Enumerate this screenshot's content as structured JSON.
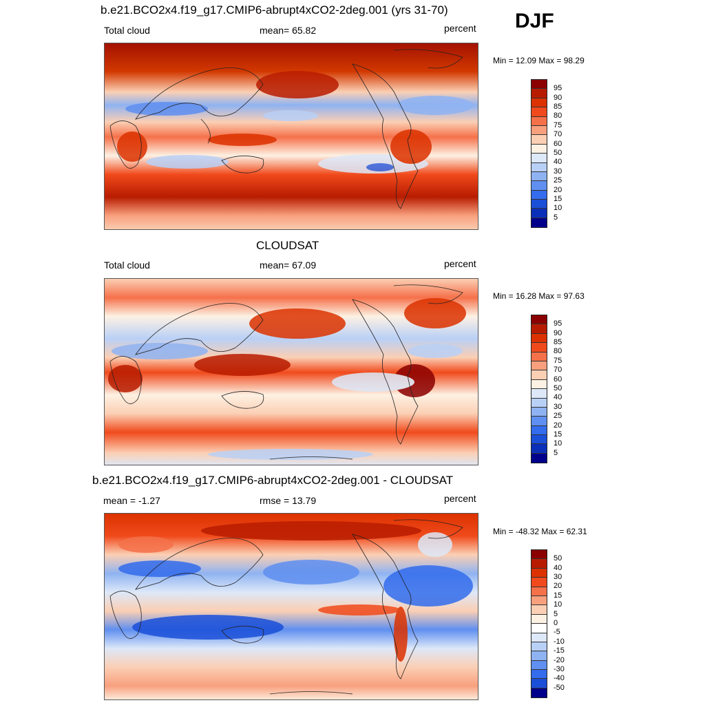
{
  "season": "DJF",
  "panels": [
    {
      "title": "b.e21.BCO2x4.f19_g17.CMIP6-abrupt4xCO2-2deg.001 (yrs 31-70)",
      "left_label": "Total cloud",
      "center_label": "mean=  65.82",
      "right_label": "percent",
      "minmax": "Min =  12.09 Max =  98.29",
      "colorbar": {
        "labels": [
          "95",
          "90",
          "85",
          "80",
          "75",
          "70",
          "60",
          "50",
          "40",
          "30",
          "25",
          "20",
          "15",
          "10",
          "5"
        ],
        "colors": [
          "#8b0000",
          "#b81c00",
          "#dc3200",
          "#f04a1c",
          "#f5714a",
          "#f8a07e",
          "#fbcfb4",
          "#fdf1e3",
          "#dde8f8",
          "#b9d0f6",
          "#8fb3f2",
          "#5f8ff0",
          "#336cec",
          "#1a4fd8",
          "#0a2fb8",
          "#00008b"
        ]
      },
      "field": "model"
    },
    {
      "title": "CLOUDSAT",
      "left_label": "Total cloud",
      "center_label": "mean=  67.09",
      "right_label": "percent",
      "minmax": "Min =  16.28 Max =  97.63",
      "colorbar": {
        "labels": [
          "95",
          "90",
          "85",
          "80",
          "75",
          "70",
          "60",
          "50",
          "40",
          "30",
          "25",
          "20",
          "15",
          "10",
          "5"
        ],
        "colors": [
          "#8b0000",
          "#b81c00",
          "#dc3200",
          "#f04a1c",
          "#f5714a",
          "#f8a07e",
          "#fbcfb4",
          "#fdf1e3",
          "#dde8f8",
          "#b9d0f6",
          "#8fb3f2",
          "#5f8ff0",
          "#336cec",
          "#1a4fd8",
          "#0a2fb8",
          "#00008b"
        ]
      },
      "field": "obs"
    },
    {
      "title": "b.e21.BCO2x4.f19_g17.CMIP6-abrupt4xCO2-2deg.001 - CLOUDSAT",
      "left_label": "mean =  -1.27",
      "center_label": "rmse =  13.79",
      "right_label": "percent",
      "minmax": "Min = -48.32 Max =  62.31",
      "colorbar": {
        "labels": [
          "50",
          "40",
          "30",
          "20",
          "15",
          "10",
          "5",
          "0",
          "-5",
          "-10",
          "-15",
          "-20",
          "-30",
          "-40",
          "-50"
        ],
        "colors": [
          "#8b0000",
          "#b81c00",
          "#dc3200",
          "#f04a1c",
          "#f5714a",
          "#f8a07e",
          "#fbcfb4",
          "#fdf1e3",
          "#ffffff",
          "#dde8f8",
          "#b9d0f6",
          "#8fb3f2",
          "#5f8ff0",
          "#336cec",
          "#1a4fd8",
          "#00008b"
        ]
      },
      "field": "diff"
    }
  ]
}
